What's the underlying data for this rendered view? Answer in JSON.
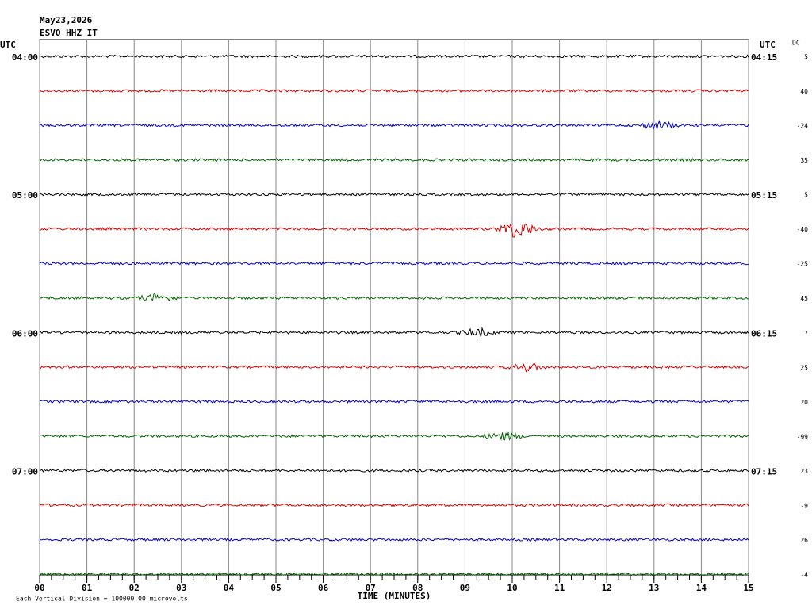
{
  "chart_data": {
    "type": "helicorder",
    "title": "May23,2026",
    "subtitle": "ESVO HHZ IT",
    "left_axis_label": "UTC",
    "right_axis_label": "UTC",
    "dc_label": "DC",
    "xlabel": "TIME (MINUTES)",
    "footnote": "Each Vertical Division = 100000.00 microvolts",
    "xlim": [
      0,
      15
    ],
    "xticks": [
      {
        "value": 0,
        "label": "00"
      },
      {
        "value": 1,
        "label": "01"
      },
      {
        "value": 2,
        "label": "02"
      },
      {
        "value": 3,
        "label": "03"
      },
      {
        "value": 4,
        "label": "04"
      },
      {
        "value": 5,
        "label": "05"
      },
      {
        "value": 6,
        "label": "06"
      },
      {
        "value": 7,
        "label": "07"
      },
      {
        "value": 8,
        "label": "08"
      },
      {
        "value": 9,
        "label": "09"
      },
      10,
      11,
      12,
      13,
      14,
      15
    ],
    "grid": true,
    "left_labels": [
      "04:00",
      null,
      null,
      null,
      "05:00",
      null,
      null,
      null,
      "06:00",
      null,
      null,
      null,
      "07:00",
      null,
      null,
      null
    ],
    "right_labels": [
      "04:15",
      null,
      null,
      null,
      "05:15",
      null,
      null,
      null,
      "06:15",
      null,
      null,
      null,
      "07:15",
      null,
      null,
      null
    ],
    "dc_offsets": [
      5,
      40,
      -24,
      35,
      5,
      -40,
      -25,
      45,
      7,
      25,
      20,
      -99,
      23,
      -9,
      26,
      -4
    ],
    "colors": [
      "#000000",
      "#dd0000",
      "#0000cc",
      "#006600"
    ]
  }
}
